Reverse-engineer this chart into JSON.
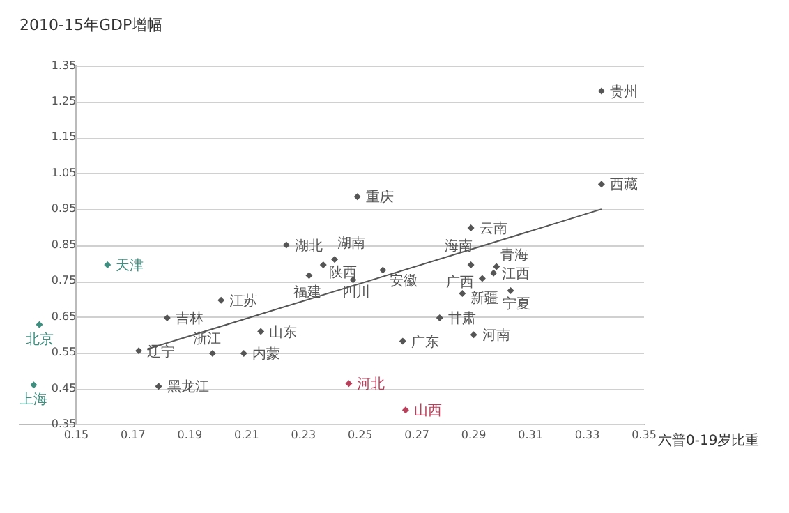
{
  "chart_data": {
    "type": "scatter",
    "title": "2010-15年GDP增幅",
    "xlabel": "六普0-19岁比重",
    "xlim": [
      0.13,
      0.35
    ],
    "xticks": [
      0.15,
      0.17,
      0.19,
      0.21,
      0.23,
      0.25,
      0.27,
      0.29,
      0.31,
      0.33,
      0.35
    ],
    "ylim": [
      0.35,
      1.35
    ],
    "yticks": [
      0.35,
      0.45,
      0.55,
      0.65,
      0.75,
      0.85,
      0.95,
      1.05,
      1.15,
      1.25,
      1.35
    ],
    "grid": "y",
    "legend": false,
    "marker": "diamond",
    "series": [
      {
        "name": "贵州",
        "color": "#555555",
        "x": [
          0.335
        ],
        "values": [
          1.28
        ]
      },
      {
        "name": "西藏",
        "color": "#555555",
        "x": [
          0.335
        ],
        "values": [
          1.02
        ]
      },
      {
        "name": "重庆",
        "color": "#555555",
        "x": [
          0.249
        ],
        "values": [
          0.985
        ]
      },
      {
        "name": "云南",
        "color": "#555555",
        "x": [
          0.289
        ],
        "values": [
          0.898
        ]
      },
      {
        "name": "湖北",
        "color": "#555555",
        "x": [
          0.224
        ],
        "values": [
          0.85
        ]
      },
      {
        "name": "湖南",
        "color": "#555555",
        "x": [
          0.241
        ],
        "values": [
          0.81
        ]
      },
      {
        "name": "陕西",
        "color": "#555555",
        "x": [
          0.237
        ],
        "values": [
          0.795
        ]
      },
      {
        "name": "福建",
        "color": "#555555",
        "x": [
          0.232
        ],
        "values": [
          0.765
        ]
      },
      {
        "name": "四川",
        "color": "#555555",
        "x": [
          0.2475
        ],
        "values": [
          0.753
        ]
      },
      {
        "name": "安徽",
        "color": "#555555",
        "x": [
          0.258
        ],
        "values": [
          0.78
        ]
      },
      {
        "name": "海南",
        "color": "#555555",
        "x": [
          0.289
        ],
        "values": [
          0.795
        ]
      },
      {
        "name": "青海",
        "color": "#555555",
        "x": [
          0.298
        ],
        "values": [
          0.79
        ]
      },
      {
        "name": "江西",
        "color": "#555555",
        "x": [
          0.297
        ],
        "values": [
          0.772
        ]
      },
      {
        "name": "广西",
        "color": "#555555",
        "x": [
          0.293
        ],
        "values": [
          0.757
        ]
      },
      {
        "name": "新疆",
        "color": "#555555",
        "x": [
          0.286
        ],
        "values": [
          0.715
        ]
      },
      {
        "name": "宁夏",
        "color": "#555555",
        "x": [
          0.303
        ],
        "values": [
          0.723
        ]
      },
      {
        "name": "甘肃",
        "color": "#555555",
        "x": [
          0.278
        ],
        "values": [
          0.647
        ]
      },
      {
        "name": "河南",
        "color": "#555555",
        "x": [
          0.29
        ],
        "values": [
          0.6
        ]
      },
      {
        "name": "广东",
        "color": "#555555",
        "x": [
          0.265
        ],
        "values": [
          0.582
        ]
      },
      {
        "name": "山西",
        "color": "#b8405a",
        "x": [
          0.266
        ],
        "values": [
          0.39
        ]
      },
      {
        "name": "河北",
        "color": "#b8405a",
        "x": [
          0.246
        ],
        "values": [
          0.464
        ]
      },
      {
        "name": "天津",
        "color": "#3f8f80",
        "x": [
          0.161
        ],
        "values": [
          0.795
        ]
      },
      {
        "name": "北京",
        "color": "#3f8f80",
        "x": [
          0.137
        ],
        "values": [
          0.628
        ]
      },
      {
        "name": "上海",
        "color": "#3f8f80",
        "x": [
          0.135
        ],
        "values": [
          0.46
        ]
      },
      {
        "name": "江苏",
        "color": "#555555",
        "x": [
          0.201
        ],
        "values": [
          0.696
        ]
      },
      {
        "name": "吉林",
        "color": "#555555",
        "x": [
          0.182
        ],
        "values": [
          0.647
        ]
      },
      {
        "name": "辽宁",
        "color": "#555555",
        "x": [
          0.172
        ],
        "values": [
          0.555
        ]
      },
      {
        "name": "浙江",
        "color": "#555555",
        "x": [
          0.198
        ],
        "values": [
          0.548
        ]
      },
      {
        "name": "内蒙",
        "color": "#555555",
        "x": [
          0.209
        ],
        "values": [
          0.548
        ]
      },
      {
        "name": "山东",
        "color": "#555555",
        "x": [
          0.215
        ],
        "values": [
          0.609
        ]
      },
      {
        "name": "黑龙江",
        "color": "#555555",
        "x": [
          0.179
        ],
        "values": [
          0.456
        ]
      },
      {
        "type": "line",
        "color": "#555555",
        "marker": "none",
        "x": [
          0.175,
          0.335
        ],
        "values": [
          0.56,
          0.95
        ]
      }
    ]
  }
}
